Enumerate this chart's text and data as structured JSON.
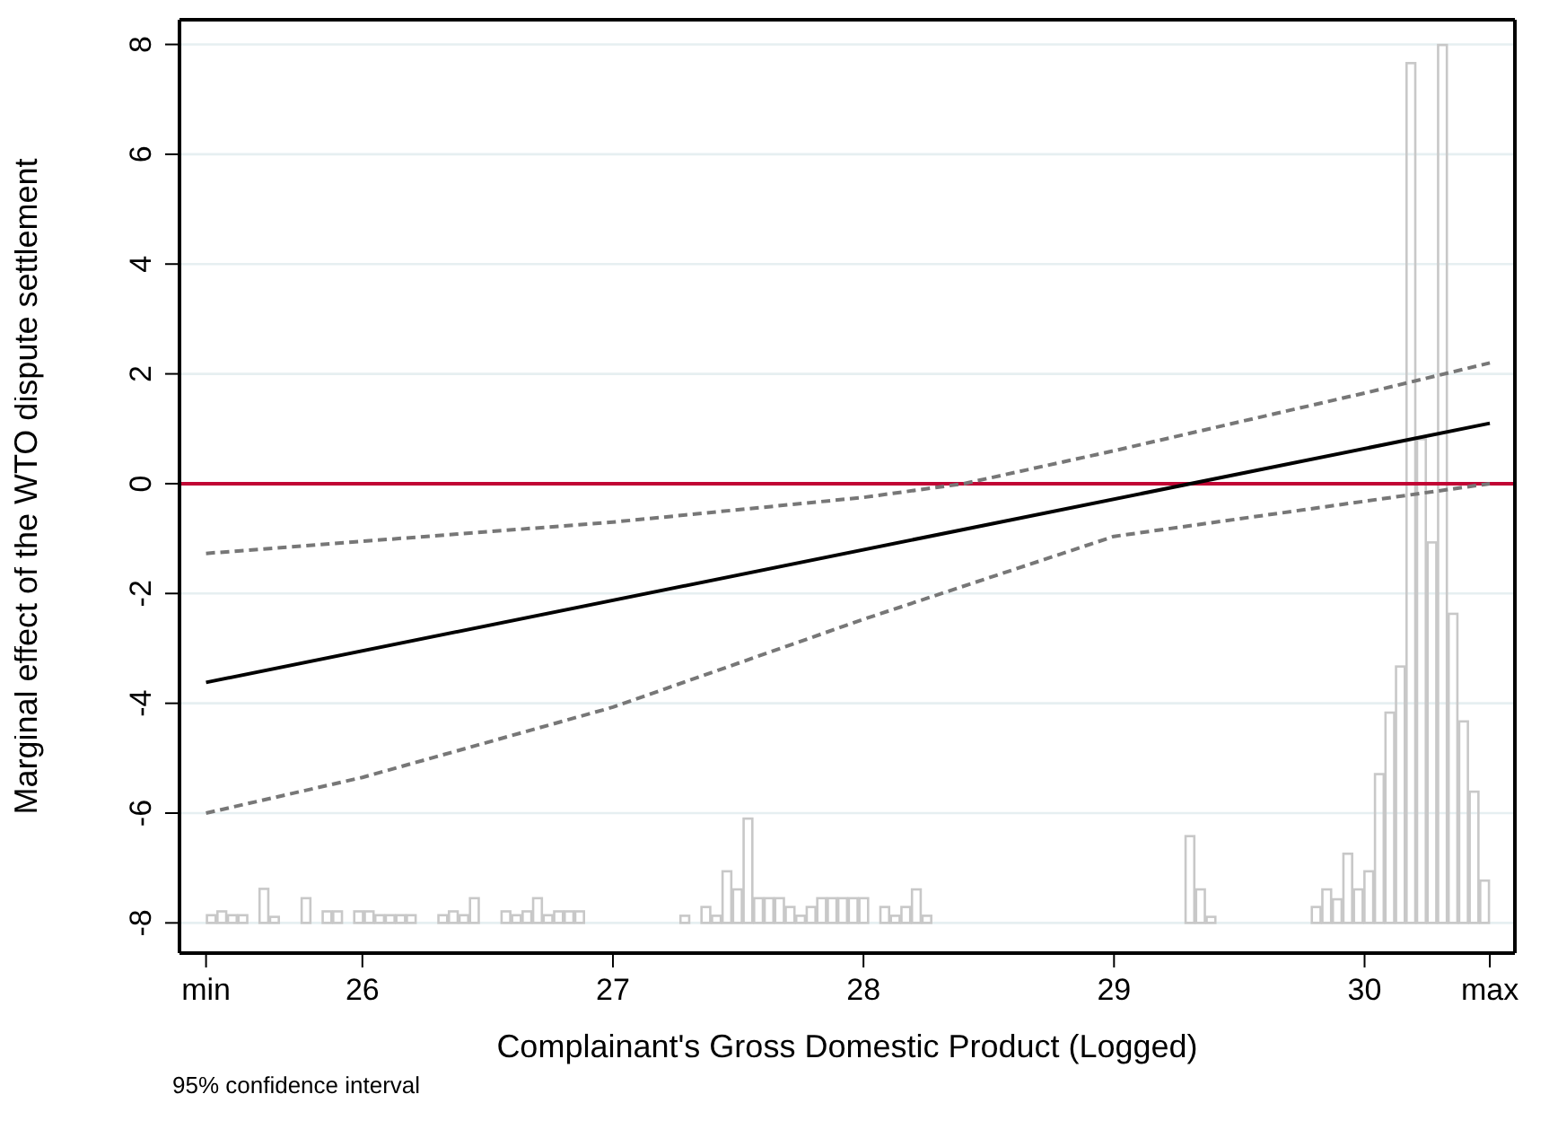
{
  "chart_data": {
    "type": "line",
    "xlabel": "Complainant's Gross Domestic Product (Logged)",
    "ylabel": "Marginal effect of the WTO dispute settlement",
    "xlim": [
      25.27,
      30.6
    ],
    "ylim": [
      -8.55,
      8.45
    ],
    "xticks": [
      {
        "value": 25.376,
        "label": "min"
      },
      26,
      27,
      28,
      29,
      30,
      {
        "value": 30.5,
        "label": "max"
      }
    ],
    "yticks": [
      -8,
      -6,
      -4,
      -2,
      0,
      2,
      4,
      6,
      8
    ],
    "grid": "y",
    "ref_lines": [
      {
        "axis": "y",
        "value": 0,
        "color": "#c10534"
      }
    ],
    "annotations": [
      "95% confidence interval"
    ],
    "series": [
      {
        "type": "bar",
        "color": "#c8c8c8",
        "x": [
          25.397,
          25.439,
          25.481,
          25.523,
          25.607,
          25.649,
          25.775,
          25.859,
          25.901,
          25.985,
          26.027,
          26.069,
          26.111,
          26.153,
          26.195,
          26.321,
          26.363,
          26.405,
          26.447,
          26.573,
          26.615,
          26.657,
          26.699,
          26.741,
          26.783,
          26.825,
          26.867,
          27.287,
          27.371,
          27.413,
          27.455,
          27.497,
          27.539,
          27.581,
          27.623,
          27.665,
          27.707,
          27.749,
          27.791,
          27.833,
          27.875,
          27.917,
          27.959,
          28.001,
          28.085,
          28.127,
          28.169,
          28.211,
          28.253,
          29.303,
          29.345,
          29.387,
          29.807,
          29.849,
          29.891,
          29.933,
          29.975,
          30.017,
          30.059,
          30.101,
          30.143,
          30.185,
          30.227,
          30.269,
          30.311,
          30.353,
          30.395,
          30.437,
          30.479
        ],
        "base": [
          -8,
          -8,
          -8,
          -8,
          -8,
          -8,
          -8,
          -8,
          -8,
          -8,
          -8,
          -8,
          -8,
          -8,
          -8,
          -8,
          -8,
          -8,
          -8,
          -8,
          -8,
          -8,
          -8,
          -8,
          -8,
          -8,
          -8,
          -8,
          -8,
          -8,
          -8,
          -8,
          -8,
          -8,
          -8,
          -8,
          -8,
          -8,
          -8,
          -8,
          -8,
          -8,
          -8,
          -8,
          -8,
          -8,
          -8,
          -8,
          -8,
          -8,
          -8,
          -8,
          -8,
          -8,
          -8,
          -8,
          -8,
          -8,
          -8,
          -8,
          -8,
          -8,
          -8,
          -8,
          -8,
          -8,
          -8,
          -8,
          -8
        ],
        "values": [
          0.14,
          0.21,
          0.14,
          0.14,
          0.62,
          0.11,
          0.45,
          0.21,
          0.21,
          0.21,
          0.21,
          0.14,
          0.14,
          0.14,
          0.14,
          0.14,
          0.21,
          0.14,
          0.45,
          0.21,
          0.14,
          0.21,
          0.45,
          0.14,
          0.21,
          0.21,
          0.21,
          0.13,
          0.29,
          0.13,
          0.94,
          0.61,
          1.9,
          0.45,
          0.45,
          0.45,
          0.29,
          0.13,
          0.29,
          0.45,
          0.45,
          0.45,
          0.45,
          0.45,
          0.29,
          0.13,
          0.29,
          0.61,
          0.13,
          1.58,
          0.61,
          0.11,
          0.29,
          0.61,
          0.43,
          1.26,
          0.61,
          0.94,
          2.71,
          3.83,
          4.67,
          15.66,
          8.81,
          6.93,
          15.99,
          5.63,
          3.67,
          2.39,
          0.77
        ]
      },
      {
        "color": "#000000",
        "line_style": "solid",
        "x": [
          25.376,
          30.5
        ],
        "values": [
          -3.62,
          1.1
        ]
      },
      {
        "color": "#777777",
        "line_style": "dashed",
        "x": [
          25.376,
          26,
          27,
          28,
          28.4,
          29,
          30,
          30.5
        ],
        "values": [
          -1.27,
          -1.05,
          -0.7,
          -0.25,
          0,
          0.6,
          1.65,
          2.2
        ]
      },
      {
        "color": "#777777",
        "line_style": "dashed",
        "x": [
          25.376,
          26,
          27,
          28,
          29,
          30,
          30.5
        ],
        "values": [
          -6.0,
          -5.35,
          -4.07,
          -2.47,
          -0.96,
          -0.32,
          0
        ]
      }
    ]
  }
}
